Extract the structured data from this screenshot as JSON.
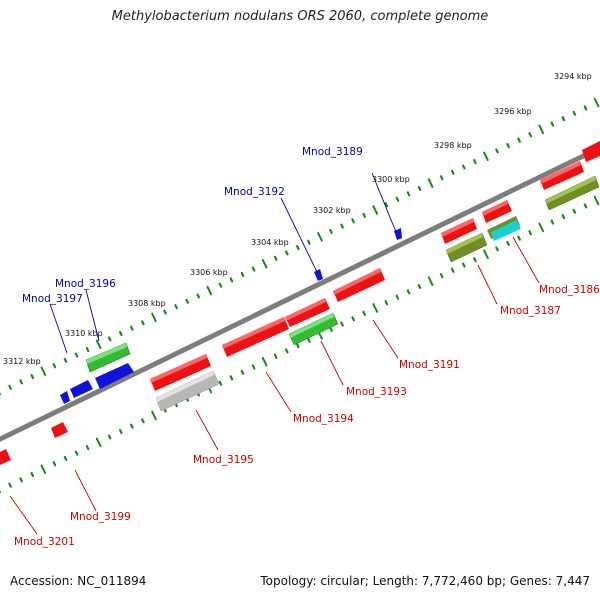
{
  "title": "Methylobacterium nodulans ORS 2060, complete genome",
  "footer": {
    "accession": "Accession: NC_011894",
    "summary": "Topology: circular; Length: 7,772,460 bp; Genes: 7,447"
  },
  "colors": {
    "backbone": "#7d7d7d",
    "tick": "#1a8a1a",
    "label_top": "#0000aa",
    "label_bottom": "#cc0000",
    "gene_red": "#ee1111",
    "gene_blue": "#1111dd",
    "gene_green": "#33bb33",
    "gene_olive": "#6f8f22",
    "gene_cyan": "#19cfcf",
    "gene_gray": "#b8b8b8"
  },
  "scale_labels": [
    "3294 kbp",
    "3296 kbp",
    "3298 kbp",
    "3300 kbp",
    "3302 kbp",
    "3304 kbp",
    "3306 kbp",
    "3308 kbp",
    "3310 kbp",
    "3312 kbp"
  ],
  "top_labels": [
    "Mnod_3189",
    "Mnod_3192",
    "Mnod_3196",
    "Mnod_3197"
  ],
  "bottom_labels": [
    "Mnod_3186",
    "Mnod_3187",
    "Mnod_3191",
    "Mnod_3193",
    "Mnod_3194",
    "Mnod_3195",
    "Mnod_3199",
    "Mnod_3201"
  ]
}
